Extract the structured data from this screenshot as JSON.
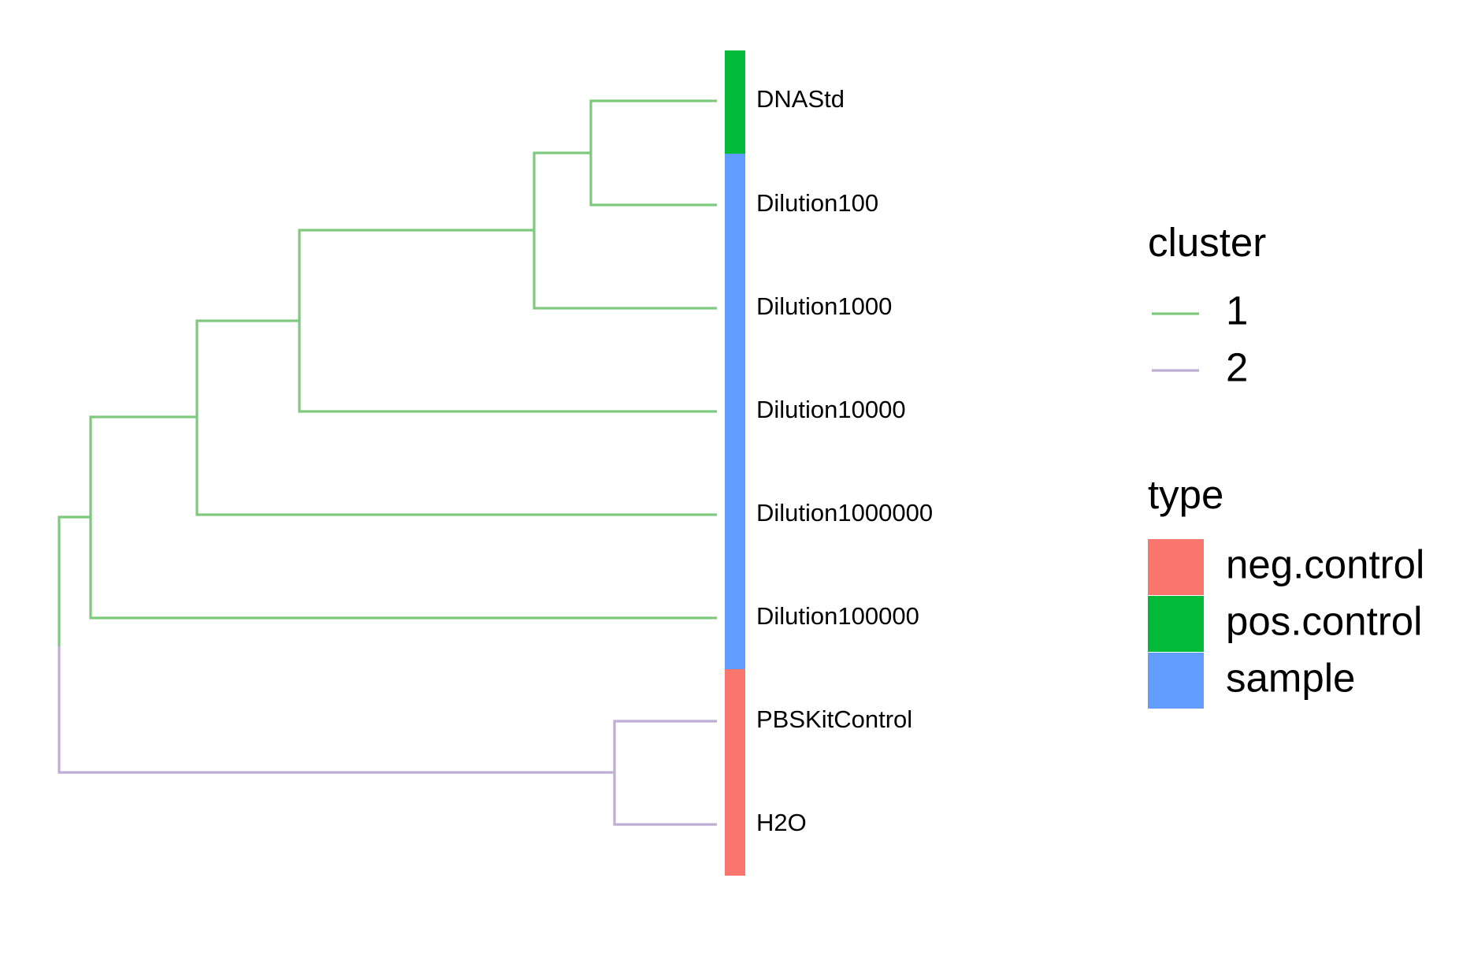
{
  "tips": [
    "DNAStd",
    "Dilution100",
    "Dilution1000",
    "Dilution10000",
    "Dilution1000000",
    "Dilution100000",
    "PBSKitControl",
    "H2O"
  ],
  "tip_types": [
    "pos.control",
    "sample",
    "sample",
    "sample",
    "sample",
    "sample",
    "neg.control",
    "neg.control"
  ],
  "tip_clusters": [
    "1",
    "1",
    "1",
    "1",
    "1",
    "1",
    "2",
    "2"
  ],
  "tree": {
    "children": [
      {
        "children": [
          {
            "children": [
              {
                "children": [
                  {
                    "children": [
                      {
                        "tip": 0
                      },
                      {
                        "tip": 1
                      }
                    ]
                  },
                  {
                    "tip": 2
                  }
                ]
              },
              {
                "tip": 3
              }
            ]
          },
          {
            "tip": 4
          }
        ]
      },
      {
        "tip": 5
      }
    ]
  },
  "tree_cluster2": {
    "children": [
      {
        "tip": 6
      },
      {
        "tip": 7
      }
    ]
  },
  "legend": {
    "cluster": {
      "title": "cluster",
      "entries": [
        {
          "label": "1",
          "color": "#7fc97f"
        },
        {
          "label": "2",
          "color": "#beaed4"
        }
      ]
    },
    "type": {
      "title": "type",
      "entries": [
        {
          "label": "neg.control",
          "color": "#f8766d"
        },
        {
          "label": "pos.control",
          "color": "#00ba38"
        },
        {
          "label": "sample",
          "color": "#619cff"
        }
      ]
    }
  }
}
